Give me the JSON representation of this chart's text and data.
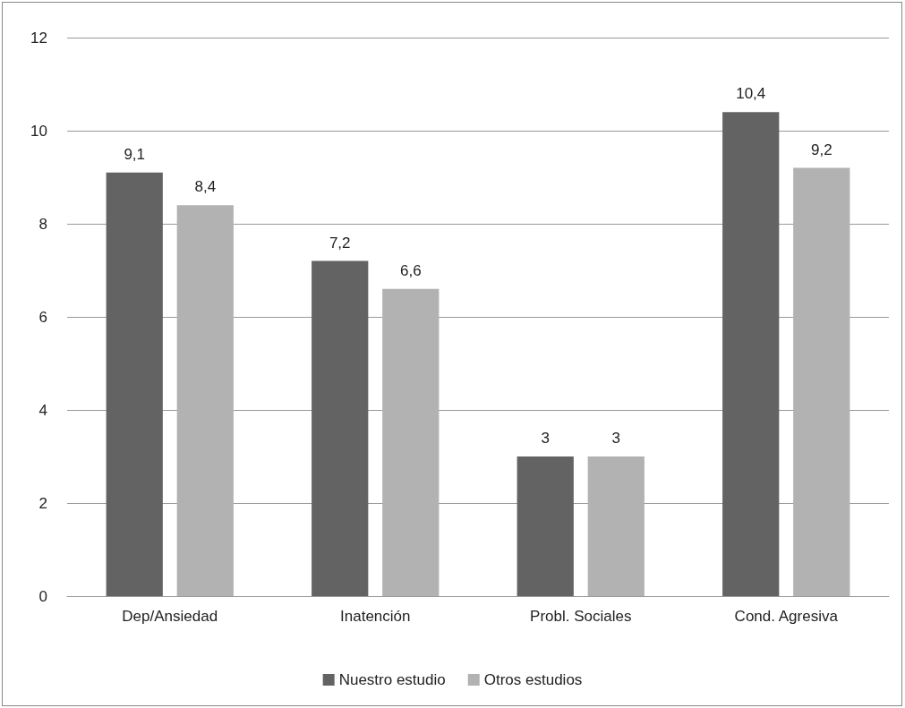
{
  "chart_data": {
    "type": "bar",
    "categories": [
      "Dep/Ansiedad",
      "Inatención",
      "Probl. Sociales",
      "Cond. Agresiva"
    ],
    "series": [
      {
        "name": "Nuestro estudio",
        "color": "#636363",
        "values": [
          9.1,
          7.2,
          3,
          10.4
        ],
        "value_labels": [
          "9,1",
          "7,2",
          "3",
          "10,4"
        ]
      },
      {
        "name": "Otros estudios",
        "color": "#b2b2b2",
        "values": [
          8.4,
          6.6,
          3,
          9.2
        ],
        "value_labels": [
          "8,4",
          "6,6",
          "3",
          "9,2"
        ]
      }
    ],
    "ylim": [
      0,
      12
    ],
    "yticks": [
      0,
      2,
      4,
      6,
      8,
      10,
      12
    ],
    "grid": "y",
    "legend": "bottom"
  }
}
